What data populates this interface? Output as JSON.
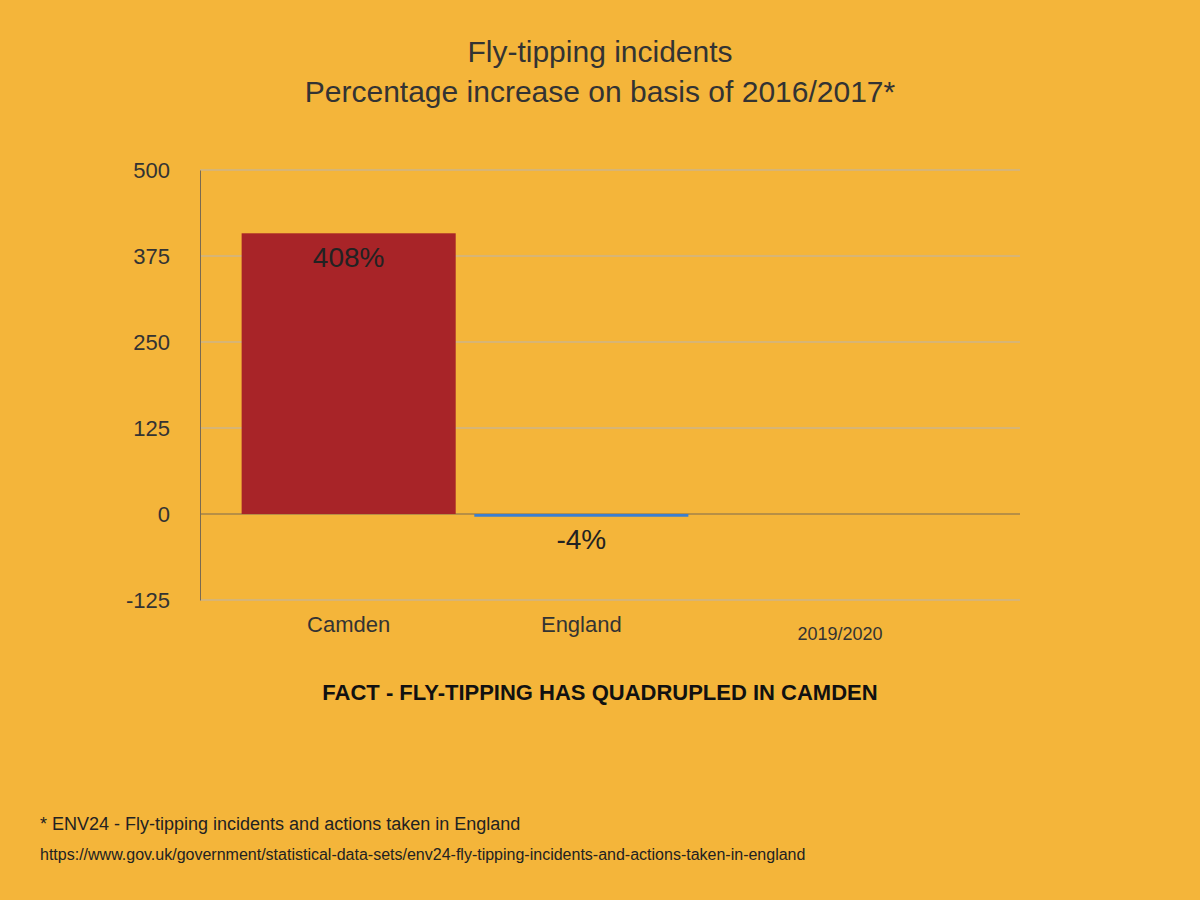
{
  "chart_data": {
    "type": "bar",
    "title": "Fly-tipping incidents",
    "subtitle": "Percentage increase on basis of 2016/2017*",
    "categories": [
      "Camden",
      "England"
    ],
    "xlabel": "2019/2020",
    "series": [
      {
        "name": "2019/2020",
        "values": [
          408,
          -4
        ],
        "value_labels": [
          "408%",
          "-4%"
        ],
        "colors": [
          "#a82428",
          "#3b7fd0"
        ]
      }
    ],
    "ylim": [
      -125,
      500
    ],
    "yticks": [
      -125,
      0,
      125,
      250,
      375,
      500
    ],
    "grid": true,
    "data_labels": true,
    "annotation": "FACT - FLY-TIPPING HAS QUADRUPLED IN CAMDEN",
    "footnote": "* ENV24 - Fly-tipping incidents and actions taken in England",
    "source": "https://www.gov.uk/government/statistical-data-sets/env24-fly-tipping-incidents-and-actions-taken-in-england"
  }
}
